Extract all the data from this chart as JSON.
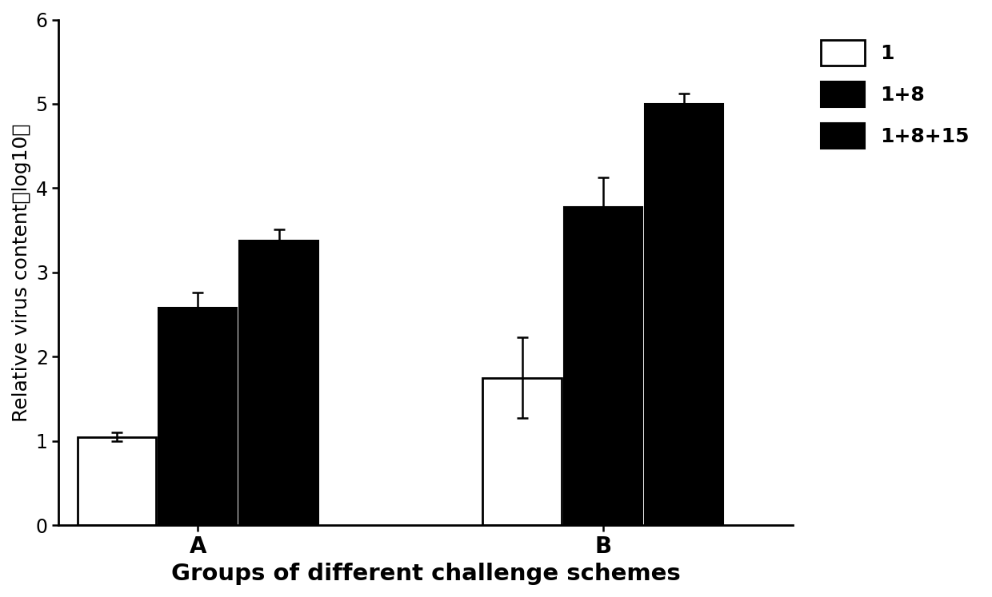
{
  "groups": [
    "A",
    "B"
  ],
  "series_labels": [
    "1",
    "1+8",
    "1+8+15"
  ],
  "values": {
    "A": [
      1.05,
      2.58,
      3.38
    ],
    "B": [
      1.75,
      3.78,
      5.0
    ]
  },
  "errors": {
    "A": [
      0.05,
      0.18,
      0.13
    ],
    "B": [
      0.48,
      0.35,
      0.12
    ]
  },
  "ylabel": "Relative virus content（log10）",
  "xlabel": "Groups of different challenge schemes",
  "ylim": [
    0,
    6
  ],
  "yticks": [
    0,
    1,
    2,
    3,
    4,
    5,
    6
  ],
  "bar_width": 0.32,
  "group_centers": [
    1.0,
    2.6
  ],
  "label_fontsize": 18,
  "tick_fontsize": 17,
  "legend_fontsize": 18,
  "background_color": "white"
}
